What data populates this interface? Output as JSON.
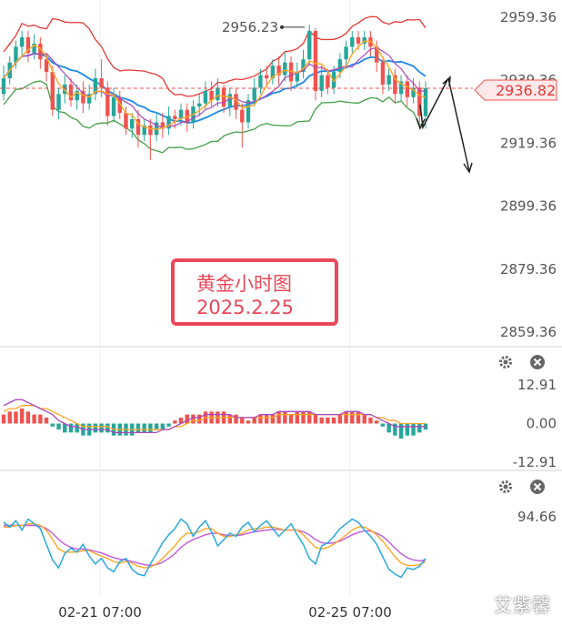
{
  "chart_data": [
    {
      "type": "candlestick",
      "title": "",
      "price_axis": {
        "ticks": [
          2959.36,
          2939.36,
          2919.36,
          2899.36,
          2879.36,
          2859.36
        ],
        "range": [
          2854,
          2965
        ]
      },
      "ticks_text": [
        "2959.36",
        "2939.36",
        "2919.36",
        "2899.36",
        "2879.36",
        "2859.36"
      ],
      "current_price": 2936.82,
      "current_price_text": "2936.82",
      "high_marker": 2956.23,
      "high_marker_text": "2956.23",
      "x_ticks": [
        "02-21 07:00",
        "02-25 07:00"
      ],
      "candles": [
        [
          2935,
          2940,
          2944,
          2933
        ],
        [
          2940,
          2945,
          2947,
          2938
        ],
        [
          2945,
          2950,
          2952,
          2943
        ],
        [
          2950,
          2953,
          2955,
          2947
        ],
        [
          2953,
          2948,
          2955,
          2945
        ],
        [
          2948,
          2951,
          2954,
          2946
        ],
        [
          2951,
          2946,
          2953,
          2943
        ],
        [
          2946,
          2942,
          2948,
          2939
        ],
        [
          2942,
          2930,
          2944,
          2928
        ],
        [
          2930,
          2935,
          2937,
          2927
        ],
        [
          2935,
          2938,
          2941,
          2932
        ],
        [
          2938,
          2933,
          2940,
          2931
        ],
        [
          2933,
          2936,
          2938,
          2930
        ],
        [
          2936,
          2932,
          2939,
          2929
        ],
        [
          2932,
          2935,
          2938,
          2930
        ],
        [
          2935,
          2940,
          2943,
          2933
        ],
        [
          2940,
          2937,
          2946,
          2934
        ],
        [
          2937,
          2928,
          2939,
          2925
        ],
        [
          2928,
          2934,
          2937,
          2926
        ],
        [
          2934,
          2929,
          2936,
          2927
        ],
        [
          2929,
          2924,
          2931,
          2922
        ],
        [
          2924,
          2927,
          2929,
          2921
        ],
        [
          2927,
          2922,
          2930,
          2918
        ],
        [
          2922,
          2925,
          2927,
          2920
        ],
        [
          2925,
          2922,
          2927,
          2914
        ],
        [
          2922,
          2926,
          2929,
          2920
        ],
        [
          2926,
          2924,
          2929,
          2921
        ],
        [
          2924,
          2928,
          2931,
          2922
        ],
        [
          2928,
          2927,
          2930,
          2924
        ],
        [
          2927,
          2930,
          2932,
          2925
        ],
        [
          2930,
          2926,
          2932,
          2923
        ],
        [
          2926,
          2931,
          2933,
          2924
        ],
        [
          2931,
          2932,
          2935,
          2928
        ],
        [
          2932,
          2936,
          2939,
          2930
        ],
        [
          2936,
          2933,
          2939,
          2931
        ],
        [
          2933,
          2937,
          2940,
          2931
        ],
        [
          2937,
          2931,
          2938,
          2929
        ],
        [
          2931,
          2935,
          2937,
          2928
        ],
        [
          2935,
          2930,
          2937,
          2927
        ],
        [
          2930,
          2926,
          2932,
          2918
        ],
        [
          2926,
          2933,
          2935,
          2924
        ],
        [
          2933,
          2937,
          2940,
          2931
        ],
        [
          2937,
          2941,
          2943,
          2935
        ],
        [
          2941,
          2940,
          2944,
          2937
        ],
        [
          2940,
          2944,
          2946,
          2938
        ],
        [
          2944,
          2941,
          2947,
          2938
        ],
        [
          2941,
          2945,
          2948,
          2939
        ],
        [
          2945,
          2939,
          2947,
          2936
        ],
        [
          2939,
          2942,
          2945,
          2937
        ],
        [
          2942,
          2946,
          2949,
          2940
        ],
        [
          2946,
          2955,
          2957,
          2944
        ],
        [
          2955,
          2936,
          2956,
          2933
        ],
        [
          2936,
          2941,
          2944,
          2934
        ],
        [
          2941,
          2937,
          2943,
          2935
        ],
        [
          2937,
          2942,
          2944,
          2935
        ],
        [
          2942,
          2946,
          2948,
          2940
        ],
        [
          2946,
          2950,
          2952,
          2944
        ],
        [
          2950,
          2953,
          2955,
          2948
        ],
        [
          2953,
          2951,
          2955,
          2949
        ],
        [
          2951,
          2953,
          2955,
          2949
        ],
        [
          2953,
          2950,
          2955,
          2947
        ],
        [
          2950,
          2945,
          2952,
          2942
        ],
        [
          2945,
          2938,
          2947,
          2935
        ],
        [
          2938,
          2941,
          2943,
          2936
        ],
        [
          2941,
          2935,
          2943,
          2932
        ],
        [
          2935,
          2939,
          2941,
          2933
        ],
        [
          2939,
          2934,
          2941,
          2931
        ],
        [
          2934,
          2937,
          2940,
          2932
        ],
        [
          2937,
          2928,
          2939,
          2926
        ],
        [
          2928,
          2936.82,
          2939,
          2924
        ]
      ],
      "ma_fast_color": "#ffa726",
      "ma_mid_color": "#ab47bc",
      "mid_band_color": "#1e88e5",
      "upper_band_color": "#e53935",
      "lower_band_color": "#43a047",
      "up_color": "#26a69a",
      "down_color": "#ef5350"
    },
    {
      "type": "macd",
      "ticks_text": [
        "12.91",
        "0.00",
        "-12.91"
      ],
      "range": [
        -12.91,
        12.91
      ],
      "histogram": [
        3,
        4,
        4,
        5,
        4,
        3,
        3,
        2,
        -1,
        -2,
        -3,
        -3,
        -3,
        -4,
        -4,
        -3,
        -3,
        -3,
        -4,
        -4,
        -4,
        -4,
        -3,
        -3,
        -3,
        -2,
        -2,
        -1,
        1,
        2,
        3,
        3,
        3,
        4,
        4,
        4,
        4,
        3,
        3,
        2,
        1,
        2,
        3,
        3,
        3,
        4,
        4,
        3,
        4,
        4,
        4,
        3,
        2,
        2,
        2,
        3,
        4,
        4,
        4,
        3,
        2,
        1,
        -1,
        -3,
        -4,
        -5,
        -4,
        -4,
        -3,
        -2
      ],
      "macd_line": [
        6,
        7,
        8,
        8,
        7,
        6,
        5,
        4,
        3,
        1,
        0,
        -1,
        -1,
        -2,
        -2,
        -2,
        -2,
        -2,
        -3,
        -3,
        -3,
        -3,
        -3,
        -3,
        -3,
        -3,
        -2,
        -2,
        -1,
        0,
        1,
        2,
        2,
        3,
        3,
        3,
        3,
        3,
        2,
        2,
        2,
        2,
        3,
        3,
        3,
        4,
        4,
        4,
        4,
        4,
        4,
        3,
        3,
        3,
        3,
        3,
        4,
        4,
        4,
        3,
        3,
        2,
        1,
        0,
        -1,
        -1,
        -1,
        -1,
        -1,
        -1
      ],
      "signal_line": [
        4,
        5,
        5,
        6,
        6,
        6,
        5,
        5,
        4,
        3,
        2,
        1,
        0,
        -1,
        -1,
        -1,
        -1,
        -1,
        -2,
        -2,
        -2,
        -2,
        -2,
        -2,
        -2,
        -2,
        -2,
        -2,
        -1,
        -1,
        0,
        1,
        1,
        2,
        2,
        2,
        2,
        2,
        2,
        2,
        2,
        2,
        2,
        2,
        2,
        3,
        3,
        3,
        3,
        3,
        3,
        3,
        3,
        3,
        3,
        3,
        3,
        3,
        3,
        3,
        3,
        2,
        2,
        1,
        1,
        0,
        0,
        0,
        0,
        0
      ]
    },
    {
      "type": "oscillator",
      "ticks_text": [
        "94.66"
      ],
      "range": [
        0,
        110
      ],
      "line_fast": [
        88,
        82,
        90,
        78,
        92,
        86,
        80,
        60,
        40,
        30,
        48,
        55,
        50,
        60,
        45,
        35,
        42,
        30,
        25,
        38,
        42,
        28,
        22,
        20,
        35,
        48,
        62,
        72,
        80,
        92,
        86,
        70,
        82,
        90,
        76,
        58,
        66,
        74,
        70,
        82,
        88,
        76,
        84,
        90,
        80,
        70,
        78,
        86,
        72,
        60,
        42,
        35,
        58,
        62,
        70,
        80,
        86,
        92,
        88,
        78,
        70,
        60,
        44,
        28,
        22,
        18,
        30,
        28,
        32,
        42
      ],
      "line_mid": [
        82,
        82,
        84,
        84,
        86,
        86,
        84,
        78,
        66,
        54,
        50,
        50,
        50,
        52,
        52,
        48,
        45,
        42,
        38,
        36,
        38,
        36,
        32,
        30,
        31,
        35,
        42,
        50,
        58,
        68,
        74,
        74,
        76,
        80,
        80,
        74,
        70,
        70,
        72,
        74,
        78,
        80,
        80,
        82,
        82,
        80,
        78,
        78,
        78,
        72,
        64,
        56,
        54,
        56,
        60,
        66,
        72,
        78,
        82,
        82,
        78,
        72,
        64,
        54,
        44,
        36,
        33,
        33,
        34,
        38
      ],
      "line_slow": [
        84,
        84,
        84,
        84,
        84,
        84,
        83,
        80,
        74,
        66,
        60,
        56,
        54,
        54,
        53,
        51,
        49,
        46,
        43,
        41,
        40,
        38,
        36,
        34,
        33,
        34,
        37,
        42,
        48,
        56,
        62,
        66,
        69,
        72,
        74,
        74,
        72,
        71,
        71,
        72,
        74,
        76,
        77,
        78,
        79,
        79,
        78,
        78,
        78,
        76,
        72,
        66,
        62,
        61,
        62,
        64,
        68,
        72,
        75,
        77,
        77,
        74,
        70,
        63,
        55,
        48,
        43,
        40,
        39,
        40
      ],
      "fast_color": "#29a8e0",
      "mid_color": "#ffa726",
      "slow_color": "#c158dc"
    }
  ],
  "annotation": {
    "title": "黄金小时图",
    "date": "2025.2.25"
  },
  "watermark": "艾紫馨",
  "icons": [
    "gear-icon",
    "close-icon"
  ]
}
